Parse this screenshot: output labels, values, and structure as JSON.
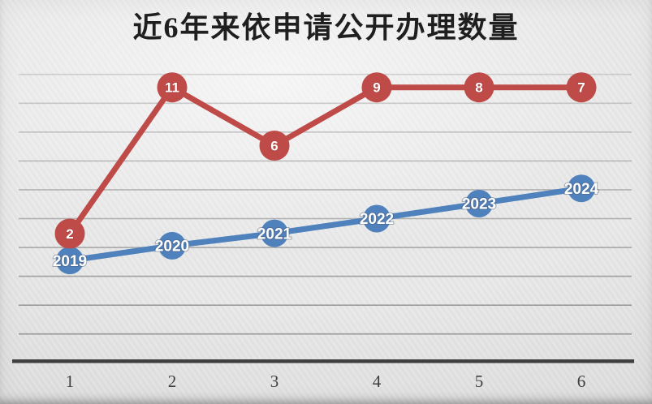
{
  "colors": {
    "background": "#E7E7E7",
    "red_series": "#BF4B49",
    "blue_series": "#4F81BD",
    "axis_line": "#3F3F3F",
    "gridline": "#7A7A7A",
    "tick_label_text": "#3F3F3F",
    "title_text": "#1F1F1F",
    "data_label_text": "#FFFFFF"
  },
  "chart_data": {
    "type": "line",
    "title": "近6年来依申请公开办理数量",
    "xlabel": "",
    "ylabel": "",
    "x_tick_labels": [
      "1",
      "2",
      "3",
      "4",
      "5",
      "6"
    ],
    "ylim": [
      0,
      10
    ],
    "gridlines": {
      "horizontal": true,
      "major_unit": 1
    },
    "y_axis_labels_visible": false,
    "legend_position": "none",
    "series": [
      {
        "id": "red_series",
        "type": "line-with-markers",
        "color": "#BF4B49",
        "values": [
          2,
          11,
          6,
          9,
          8,
          7
        ],
        "data_labels": [
          "2",
          "11",
          "6",
          "9",
          "8",
          "7"
        ],
        "plotted_values": [
          4.48,
          9.55,
          7.53,
          9.55,
          9.55,
          9.55
        ]
      },
      {
        "id": "blue_series",
        "type": "line-with-markers",
        "color": "#4F81BD",
        "data_labels": [
          "2019",
          "2020",
          "2021",
          "2022",
          "2023",
          "2024"
        ],
        "plotted_values": [
          3.55,
          4.06,
          4.49,
          5.0,
          5.52,
          6.05
        ]
      }
    ]
  }
}
